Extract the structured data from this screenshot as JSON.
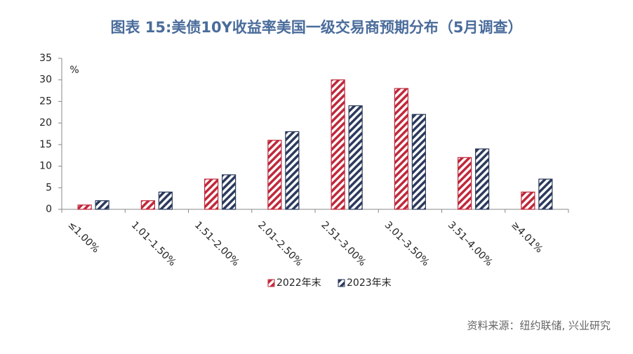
{
  "chart_data": {
    "type": "bar",
    "title": "图表 15:美债10Y收益率美国一级交易商预期分布（5月调查）",
    "y_label": "%",
    "source": "资料来源：纽约联储, 兴业研究",
    "categories": [
      "≤1.00%",
      "1.01–1.50%",
      "1.51–2.00%",
      "2.01–2.50%",
      "2.51–3.00%",
      "3.01–3.50%",
      "3.51–4.00%",
      "≥4.01%"
    ],
    "series": [
      {
        "name": "2022年末",
        "color": "#c0283b",
        "values": [
          1,
          2,
          7,
          16,
          30,
          28,
          12,
          4
        ]
      },
      {
        "name": "2023年末",
        "color": "#2b3a5c",
        "values": [
          2,
          4,
          8,
          18,
          24,
          22,
          14,
          7
        ]
      }
    ],
    "ylim": [
      0,
      35
    ],
    "yticks": [
      0,
      5,
      10,
      15,
      20,
      25,
      30,
      35
    ],
    "grid": false
  }
}
